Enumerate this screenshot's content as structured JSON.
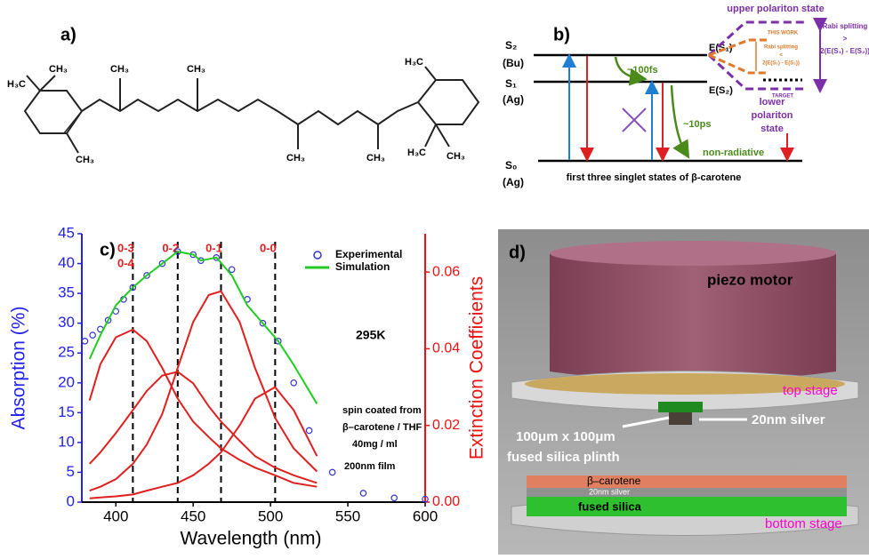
{
  "panel_a": {
    "label": "a)",
    "groups": [
      "H₃C",
      "CH₃",
      "CH₃",
      "CH₃",
      "CH₃",
      "CH₃",
      "CH₃",
      "H₃C",
      "H₃C",
      "CH₃"
    ]
  },
  "panel_b": {
    "label": "b)",
    "s2": [
      "S₂",
      "(Bu)"
    ],
    "s1": [
      "S₁",
      "(Ag)"
    ],
    "s0": [
      "S₀",
      "(Ag)"
    ],
    "fast": "~100fs",
    "slow": "~10ps",
    "nonrad": "non-radiative",
    "e1": "E(S₁)",
    "e2": "E(S₂)",
    "caption": "first three singlet states of β-carotene",
    "upper": "upper polariton state",
    "lower": [
      "lower",
      "polariton",
      "state"
    ],
    "this_work": "THIS WORK",
    "rabi_small": [
      "Rabi splitting",
      "<",
      "2(E(S₁) - E(S₂))"
    ],
    "rabi_large": [
      "Rabi splitting",
      ">",
      "2(E(S₁) - E(S₂))"
    ],
    "target": "TARGET"
  },
  "chart_data": {
    "type": "line",
    "panel_label": "c)",
    "xlabel": "Wavelength (nm)",
    "ylabel": "Absorption (%)",
    "y2label": "Extinction Coefficients",
    "xlim": [
      378,
      600
    ],
    "xticks": [
      400,
      450,
      500,
      550,
      600
    ],
    "ylim": [
      0,
      45
    ],
    "yticks": [
      0,
      5,
      10,
      15,
      20,
      25,
      30,
      35,
      40,
      45
    ],
    "ycolor": "#2222ee",
    "y2lim": [
      0,
      0.07
    ],
    "y2ticks": [
      {
        "value": 0,
        "label": "0.00"
      },
      {
        "value": 0.02,
        "label": "0.02"
      },
      {
        "value": 0.04,
        "label": "0.04"
      },
      {
        "value": 0.06,
        "label": "0.06"
      }
    ],
    "y2color": "#ee1111",
    "series": [
      {
        "name": "Experimental",
        "color": "#3434d0",
        "marker": "circle",
        "x": [
          380,
          385,
          390,
          395,
          400,
          405,
          411,
          420,
          430,
          440,
          450,
          455,
          465,
          475,
          485,
          495,
          505,
          515,
          525,
          540,
          560,
          580,
          600
        ],
        "values": [
          27,
          28,
          29,
          30.5,
          32,
          34,
          36,
          38,
          40,
          42,
          41.5,
          40.5,
          41,
          39,
          34,
          30,
          27,
          20,
          12,
          5,
          1.5,
          0.7,
          0.5
        ]
      },
      {
        "name": "Simulation",
        "color": "#22cc22",
        "x": [
          383,
          390,
          400,
          411,
          420,
          430,
          440,
          450,
          455,
          465,
          475,
          485,
          495,
          505,
          515,
          530
        ],
        "values": [
          24,
          28,
          33,
          36,
          38,
          40,
          42,
          41.5,
          40.5,
          41,
          38,
          33,
          30,
          27,
          23,
          16.5
        ]
      },
      {
        "color": "#e02020",
        "axis": "y2",
        "x": [
          383,
          390,
          400,
          411,
          420,
          430,
          440,
          450,
          460,
          468,
          480,
          490,
          503,
          515,
          530
        ],
        "values": [
          0.0265,
          0.036,
          0.043,
          0.045,
          0.042,
          0.035,
          0.027,
          0.021,
          0.017,
          0.014,
          0.011,
          0.009,
          0.007,
          0.005,
          0.004
        ]
      },
      {
        "color": "#e02020",
        "axis": "y2",
        "x": [
          383,
          390,
          400,
          411,
          420,
          430,
          440,
          450,
          460,
          468,
          480,
          490,
          503,
          515,
          530
        ],
        "values": [
          0.01,
          0.013,
          0.018,
          0.024,
          0.029,
          0.033,
          0.034,
          0.031,
          0.025,
          0.021,
          0.016,
          0.012,
          0.009,
          0.007,
          0.005
        ]
      },
      {
        "color": "#e02020",
        "axis": "y2",
        "x": [
          383,
          390,
          400,
          411,
          420,
          430,
          440,
          450,
          460,
          468,
          480,
          490,
          503,
          515,
          530
        ],
        "values": [
          0.003,
          0.004,
          0.006,
          0.01,
          0.015,
          0.023,
          0.035,
          0.047,
          0.054,
          0.055,
          0.047,
          0.035,
          0.022,
          0.014,
          0.008
        ]
      },
      {
        "color": "#e02020",
        "axis": "y2",
        "x": [
          383,
          390,
          400,
          411,
          420,
          430,
          440,
          450,
          460,
          468,
          480,
          490,
          503,
          515,
          530
        ],
        "values": [
          0.001,
          0.0012,
          0.0015,
          0.002,
          0.003,
          0.004,
          0.005,
          0.007,
          0.01,
          0.013,
          0.02,
          0.027,
          0.03,
          0.024,
          0.012
        ]
      }
    ],
    "transitions": {
      "x": [
        411,
        440,
        468,
        503
      ],
      "labels": [
        "0-3",
        "0-2",
        "0-1",
        "0-0"
      ],
      "extra_label": "0-4"
    },
    "annotations": [
      "295K",
      "spin coated from",
      "β–carotene / THF",
      "40mg / ml",
      "200nm film"
    ]
  },
  "panel_d": {
    "label": "d)",
    "motor": "piezo motor",
    "top_stage": "top stage",
    "silver": "20nm silver",
    "plinth": [
      "100μm x 100μm",
      "fused silica plinth"
    ],
    "layers": [
      "β–carotene",
      "20nm silver",
      "fused silica"
    ],
    "bottom_stage": "bottom stage"
  }
}
